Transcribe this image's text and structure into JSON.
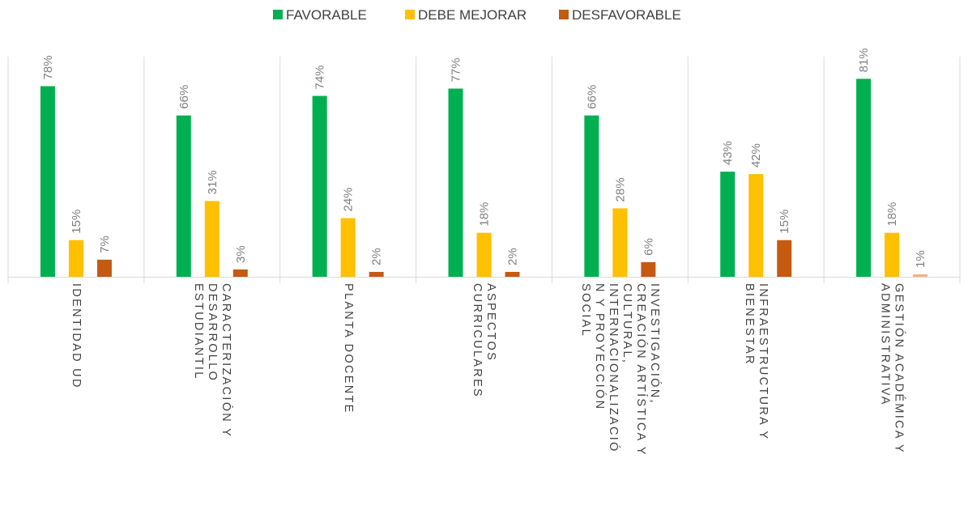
{
  "chart_data": {
    "type": "bar",
    "categories": [
      [
        "IDENTIDAD UD"
      ],
      [
        "CARACTERIZACIÓN Y",
        "DESARROLLO",
        "ESTUDIANTIL"
      ],
      [
        "PLANTA DOCENTE"
      ],
      [
        "ASPECTOS",
        "CURRICULARES"
      ],
      [
        "INVESTIGACIÓN,",
        "CREACIÓN ARTÍSTICA Y",
        "CULTURAL,",
        "INTERNACIONALIZACIÓ",
        "N Y PROYECCIÓN",
        "SOCIAL"
      ],
      [
        "INFRAESTRUCTURA Y",
        "BIENESTAR"
      ],
      [
        "GESTIÓN ACADÉMICA Y",
        "ADMINISTRATIVA"
      ]
    ],
    "series": [
      {
        "name": "FAVORABLE",
        "color": "#00b050",
        "values": [
          78,
          66,
          74,
          77,
          66,
          43,
          81
        ]
      },
      {
        "name": "DEBE MEJORAR",
        "color": "#ffc000",
        "values": [
          15,
          31,
          24,
          18,
          28,
          42,
          18
        ]
      },
      {
        "name": "DESFAVORABLE",
        "color": "#c55a11",
        "values": [
          7,
          3,
          2,
          2,
          6,
          15,
          1
        ]
      }
    ],
    "data_labels": [
      [
        "78%",
        "66%",
        "74%",
        "77%",
        "66%",
        "43%",
        "81%"
      ],
      [
        "15%",
        "31%",
        "24%",
        "18%",
        "28%",
        "42%",
        "18%"
      ],
      [
        "7%",
        "3%",
        "2%",
        "2%",
        "6%",
        "15%",
        "1%"
      ]
    ],
    "last_desfavorable_color": "#f4b183",
    "legend_position": "top",
    "ylim": [
      0,
      90
    ],
    "grid": false,
    "category_separators": true
  }
}
